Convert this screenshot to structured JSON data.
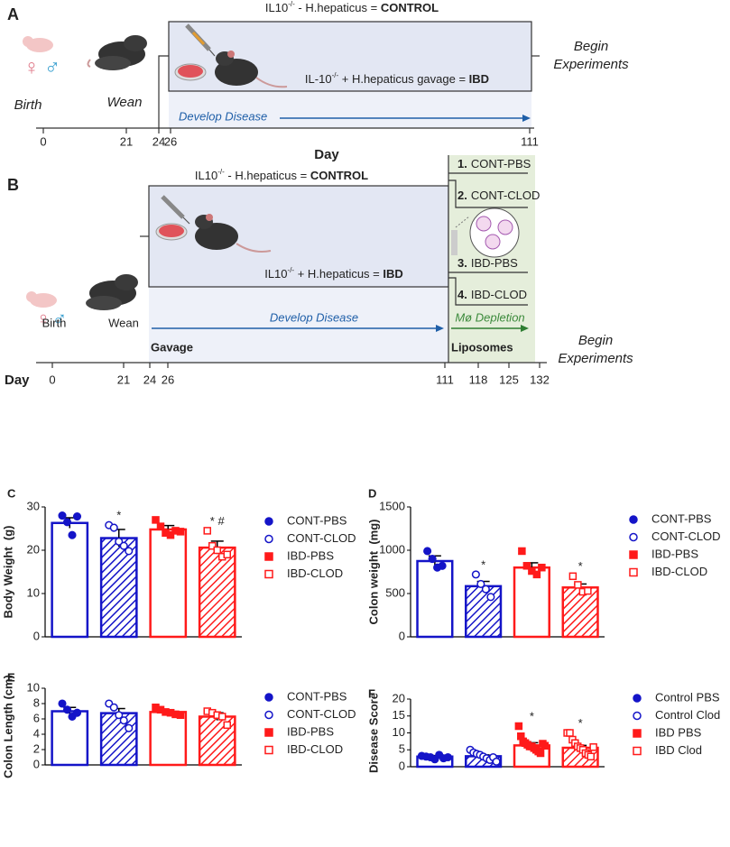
{
  "panel_a": {
    "label": "A",
    "control_label": {
      "t1": "IL10",
      "sup": "-/-",
      "t2": " - H.hepaticus = ",
      "bold": "CONTROL"
    },
    "ibd_label": {
      "t1": "IL-10",
      "sup": "-/-",
      "t2": " + H.hepaticus gavage = ",
      "bold": "IBD"
    },
    "sex_symbols": [
      "♀",
      "♂"
    ],
    "birth": "Birth",
    "wean": "Wean",
    "develop": "Develop Disease",
    "begin": [
      "Begin",
      "Experiments"
    ],
    "day_label": "Day",
    "days": [
      0,
      21,
      24,
      26,
      111
    ]
  },
  "panel_b": {
    "label": "B",
    "control_label": {
      "t1": "IL10",
      "sup": "-/-",
      "t2": " - H.hepaticus = ",
      "bold": "CONTROL"
    },
    "ibd_label": {
      "t1": "IL10",
      "sup": "-/-",
      "t2": " + H.hepaticus = ",
      "bold": "IBD"
    },
    "groups": [
      {
        "num": "1.",
        "name": "CONT-PBS"
      },
      {
        "num": "2.",
        "name": "CONT-CLOD"
      },
      {
        "num": "3.",
        "name": "IBD-PBS"
      },
      {
        "num": "4.",
        "name": "IBD-CLOD"
      }
    ],
    "sex_symbols": [
      "♀",
      "♂"
    ],
    "birth": "Birth",
    "wean": "Wean",
    "gavage": "Gavage",
    "develop": "Develop Disease",
    "depletion": "Mø Depletion",
    "liposomes": "Liposomes",
    "begin": [
      "Begin",
      "Experiments"
    ],
    "day_label": "Day",
    "days": [
      0,
      21,
      24,
      26,
      111,
      118,
      125,
      132
    ]
  },
  "chart_data": [
    {
      "type": "bar",
      "panel_label": "C",
      "ylabel": "Body Weight  (g)",
      "ylim": [
        0,
        30
      ],
      "yticks": [
        0,
        10,
        20,
        30
      ],
      "series": [
        {
          "name": "CONT-PBS",
          "color": "#1414c8",
          "marker": "circle",
          "filled": true,
          "hatched": false,
          "value": 26.3,
          "error": 1.2,
          "points": [
            28,
            26.5,
            23.5,
            27.8
          ]
        },
        {
          "name": "CONT-CLOD",
          "color": "#1414c8",
          "marker": "circle",
          "filled": false,
          "hatched": true,
          "value": 22.8,
          "error": 2.0,
          "points": [
            25.8,
            25.2,
            22,
            21,
            19.8
          ],
          "significance": "*"
        },
        {
          "name": "IBD-PBS",
          "color": "#ff1a1a",
          "marker": "square",
          "filled": true,
          "hatched": false,
          "value": 24.8,
          "error": 0.9,
          "points": [
            27,
            25.5,
            24,
            23.5,
            24.5,
            24.3
          ]
        },
        {
          "name": "IBD-CLOD",
          "color": "#ff1a1a",
          "marker": "square",
          "filled": false,
          "hatched": true,
          "value": 20.6,
          "error": 1.5,
          "points": [
            24.5,
            21,
            20,
            18.5,
            19
          ],
          "significance": "* #"
        }
      ]
    },
    {
      "type": "bar",
      "panel_label": "D",
      "ylabel": "Colon weight  (mg)",
      "ylim": [
        0,
        1500
      ],
      "yticks": [
        0,
        500,
        1000,
        1500
      ],
      "series": [
        {
          "name": "CONT-PBS",
          "color": "#1414c8",
          "marker": "circle",
          "filled": true,
          "hatched": false,
          "value": 875,
          "error": 60,
          "points": [
            990,
            900,
            800,
            820
          ]
        },
        {
          "name": "CONT-CLOD",
          "color": "#1414c8",
          "marker": "circle",
          "filled": false,
          "hatched": true,
          "value": 585,
          "error": 55,
          "points": [
            720,
            610,
            550,
            460
          ],
          "significance": "*"
        },
        {
          "name": "IBD-PBS",
          "color": "#ff1a1a",
          "marker": "square",
          "filled": true,
          "hatched": false,
          "value": 800,
          "error": 55,
          "points": [
            990,
            820,
            760,
            720,
            800
          ]
        },
        {
          "name": "IBD-CLOD",
          "color": "#ff1a1a",
          "marker": "square",
          "filled": false,
          "hatched": true,
          "value": 570,
          "error": 40,
          "points": [
            700,
            600,
            520,
            530
          ],
          "significance": "*"
        }
      ]
    },
    {
      "type": "bar",
      "panel_label": "E",
      "ylabel": "Colon Length (cm)",
      "ylim": [
        0,
        10
      ],
      "yticks": [
        0,
        2,
        4,
        6,
        8,
        10
      ],
      "series": [
        {
          "name": "CONT-PBS",
          "color": "#1414c8",
          "marker": "circle",
          "filled": true,
          "hatched": false,
          "value": 7.0,
          "error": 0.5,
          "points": [
            8.0,
            7.2,
            6.3,
            6.8
          ]
        },
        {
          "name": "CONT-CLOD",
          "color": "#1414c8",
          "marker": "circle",
          "filled": false,
          "hatched": true,
          "value": 6.75,
          "error": 0.6,
          "points": [
            8.0,
            7.5,
            6.5,
            5.8,
            4.8
          ]
        },
        {
          "name": "IBD-PBS",
          "color": "#ff1a1a",
          "marker": "square",
          "filled": true,
          "hatched": false,
          "value": 6.9,
          "error": 0.3,
          "points": [
            7.5,
            7.2,
            6.9,
            6.8,
            6.6,
            6.5
          ]
        },
        {
          "name": "IBD-CLOD",
          "color": "#ff1a1a",
          "marker": "square",
          "filled": false,
          "hatched": true,
          "value": 6.3,
          "error": 0.5,
          "points": [
            7.0,
            6.8,
            6.5,
            6.3,
            5.2
          ]
        }
      ]
    },
    {
      "type": "bar",
      "panel_label": "F",
      "ylabel": "Disease Score",
      "ylim": [
        0,
        20
      ],
      "yticks": [
        0,
        5,
        10,
        15,
        20
      ],
      "series": [
        {
          "name": "Control PBS",
          "color": "#1414c8",
          "marker": "circle",
          "filled": true,
          "hatched": false,
          "value": 3.0,
          "error": 0.3,
          "points": [
            3.2,
            3,
            2.8,
            2.2,
            3.5,
            2.5,
            2.8
          ]
        },
        {
          "name": "Control Clod",
          "color": "#1414c8",
          "marker": "circle",
          "filled": false,
          "hatched": true,
          "value": 3.1,
          "error": 0.4,
          "points": [
            5,
            4.2,
            3.8,
            3.5,
            3,
            2.5,
            2,
            2.8,
            1.5
          ]
        },
        {
          "name": "IBD PBS",
          "color": "#ff1a1a",
          "marker": "square",
          "filled": true,
          "hatched": false,
          "value": 6.3,
          "error": 0.8,
          "points": [
            12,
            9,
            7.5,
            7,
            6.5,
            6,
            6,
            5.5,
            5,
            4.5,
            4,
            6.8,
            6.2
          ],
          "significance": "*"
        },
        {
          "name": "IBD Clod",
          "color": "#ff1a1a",
          "marker": "square",
          "filled": false,
          "hatched": true,
          "value": 5.6,
          "error": 0.7,
          "points": [
            10,
            10,
            8,
            7,
            6,
            5.5,
            5,
            4,
            3.5,
            3,
            5.8
          ],
          "significance": "*"
        }
      ]
    }
  ]
}
